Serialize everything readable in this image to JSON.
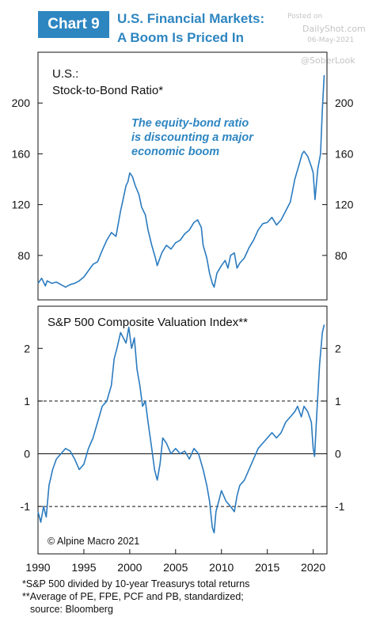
{
  "header": {
    "badge": "Chart 9",
    "title_line1": "U.S. Financial Markets:",
    "title_line2": "A Boom Is Priced In"
  },
  "watermark": {
    "posted_on": "Posted on",
    "site": "DailyShot.com",
    "date": "06-May-2021",
    "handle": "@SoberLook"
  },
  "footnotes": {
    "line1": "*S&P 500 divided by 10-year Treasurys total returns",
    "line2": "**Average of PE, FPE, PCF and PB, standardized;",
    "line3": "source: Bloomberg"
  },
  "colors": {
    "accent": "#2e86c1",
    "line": "#2b7bbf"
  },
  "chart_data": [
    {
      "type": "line",
      "title": "U.S.:",
      "subtitle": "Stock-to-Bond Ratio*",
      "annotation": [
        "The equity-bond ratio",
        "is discounting a major",
        "economic boom"
      ],
      "xlim": [
        1990,
        2021.5
      ],
      "ylim": [
        45,
        240
      ],
      "yticks": [
        80,
        120,
        160,
        200
      ],
      "grid": false,
      "series": [
        {
          "x": [
            1990,
            1990.4,
            1990.8,
            1991,
            1991.5,
            1992,
            1992.5,
            1993,
            1993.5,
            1994,
            1994.5,
            1995,
            1995.5,
            1996,
            1996.5,
            1997,
            1997.5,
            1998,
            1998.5,
            1999,
            1999.3,
            1999.6,
            1999.8,
            2000,
            2000.3,
            2000.6,
            2001,
            2001.3,
            2001.7,
            2002,
            2002.4,
            2002.8,
            2003,
            2003.5,
            2004,
            2004.5,
            2005,
            2005.5,
            2006,
            2006.5,
            2007,
            2007.4,
            2007.8,
            2008,
            2008.4,
            2008.7,
            2009,
            2009.2,
            2009.5,
            2010,
            2010.4,
            2010.7,
            2011,
            2011.4,
            2011.7,
            2012,
            2012.5,
            2013,
            2013.5,
            2014,
            2014.5,
            2015,
            2015.5,
            2016,
            2016.5,
            2017,
            2017.5,
            2018,
            2018.4,
            2018.8,
            2019,
            2019.4,
            2019.8,
            2020,
            2020.2,
            2020.5,
            2020.8,
            2021,
            2021.2
          ],
          "y": [
            58,
            62,
            56,
            60,
            58,
            59,
            57,
            55,
            57,
            58,
            60,
            63,
            68,
            73,
            75,
            84,
            92,
            98,
            95,
            115,
            125,
            135,
            138,
            145,
            142,
            135,
            128,
            118,
            112,
            100,
            88,
            78,
            72,
            82,
            88,
            85,
            90,
            92,
            97,
            100,
            106,
            108,
            102,
            88,
            78,
            66,
            58,
            55,
            66,
            72,
            76,
            70,
            80,
            82,
            70,
            74,
            78,
            86,
            92,
            100,
            105,
            106,
            110,
            104,
            108,
            115,
            122,
            140,
            150,
            160,
            162,
            158,
            150,
            145,
            124,
            148,
            160,
            195,
            222
          ]
        }
      ]
    },
    {
      "type": "line",
      "title": "S&P 500 Composite Valuation Index**",
      "annotation": "© Alpine Macro 2021",
      "xlabel_ticks": [
        "1990",
        "1995",
        "2000",
        "2005",
        "2010",
        "2015",
        "2020"
      ],
      "xticks": [
        1990,
        1995,
        2000,
        2005,
        2010,
        2015,
        2020
      ],
      "xlim": [
        1990,
        2021.5
      ],
      "ylim": [
        -1.9,
        2.8
      ],
      "yticks": [
        -1,
        0,
        1,
        2
      ],
      "reference_lines": [
        1,
        -1
      ],
      "series": [
        {
          "x": [
            1990,
            1990.3,
            1990.6,
            1990.9,
            1991.2,
            1991.6,
            1992,
            1992.5,
            1993,
            1993.5,
            1994,
            1994.5,
            1995,
            1995.5,
            1996,
            1996.5,
            1997,
            1997.5,
            1998,
            1998.3,
            1998.6,
            1999,
            1999.3,
            1999.6,
            1999.9,
            2000.2,
            2000.5,
            2000.8,
            2001.1,
            2001.4,
            2001.7,
            2002,
            2002.4,
            2002.7,
            2003,
            2003.3,
            2003.6,
            2004,
            2004.5,
            2005,
            2005.5,
            2006,
            2006.5,
            2007,
            2007.5,
            2008,
            2008.4,
            2008.7,
            2009,
            2009.2,
            2009.4,
            2009.7,
            2010,
            2010.5,
            2011,
            2011.4,
            2011.7,
            2012,
            2012.5,
            2013,
            2013.5,
            2014,
            2014.5,
            2015,
            2015.5,
            2016,
            2016.5,
            2017,
            2017.5,
            2018,
            2018.3,
            2018.7,
            2019,
            2019.4,
            2019.8,
            2020,
            2020.15,
            2020.4,
            2020.7,
            2021,
            2021.2
          ],
          "y": [
            -1.1,
            -1.3,
            -1.0,
            -1.2,
            -0.6,
            -0.3,
            -0.1,
            0.0,
            0.1,
            0.05,
            -0.1,
            -0.3,
            -0.2,
            0.1,
            0.3,
            0.6,
            0.9,
            1.0,
            1.3,
            1.8,
            2.0,
            2.3,
            2.2,
            2.1,
            2.4,
            2.0,
            2.2,
            1.6,
            1.3,
            0.9,
            1.0,
            0.6,
            0.1,
            -0.3,
            -0.5,
            -0.2,
            0.3,
            0.2,
            0.0,
            0.1,
            0.0,
            0.05,
            -0.1,
            0.1,
            0.0,
            -0.3,
            -0.6,
            -0.9,
            -1.4,
            -1.5,
            -1.1,
            -0.9,
            -0.7,
            -0.9,
            -1.0,
            -1.1,
            -0.8,
            -0.6,
            -0.5,
            -0.3,
            -0.1,
            0.1,
            0.2,
            0.3,
            0.4,
            0.3,
            0.4,
            0.6,
            0.7,
            0.8,
            0.9,
            0.7,
            0.9,
            0.8,
            0.6,
            0.1,
            -0.05,
            0.8,
            1.7,
            2.3,
            2.45
          ]
        }
      ]
    }
  ]
}
